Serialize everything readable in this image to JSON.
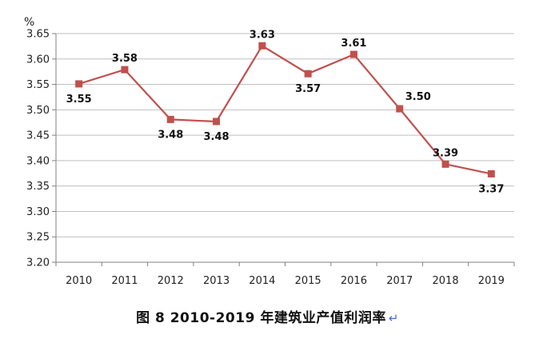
{
  "chart_data": {
    "type": "line",
    "unit": "%",
    "categories": [
      "2010",
      "2011",
      "2012",
      "2013",
      "2014",
      "2015",
      "2016",
      "2017",
      "2018",
      "2019"
    ],
    "values": [
      3.55,
      3.58,
      3.48,
      3.48,
      3.63,
      3.57,
      3.61,
      3.5,
      3.39,
      3.37
    ],
    "plotted_values": [
      3.551,
      3.579,
      3.481,
      3.477,
      3.626,
      3.571,
      3.609,
      3.502,
      3.393,
      3.374
    ],
    "data_labels": [
      "3.55",
      "3.58",
      "3.48",
      "3.48",
      "3.63",
      "3.57",
      "3.61",
      "3.50",
      "3.39",
      "3.37"
    ],
    "label_positions": [
      "below",
      "above",
      "below",
      "below",
      "above",
      "below",
      "above",
      "above-right",
      "above",
      "below"
    ],
    "yticks": [
      "3.20",
      "3.25",
      "3.30",
      "3.35",
      "3.40",
      "3.45",
      "3.50",
      "3.55",
      "3.60",
      "3.65"
    ],
    "ylim": [
      3.2,
      3.65
    ],
    "grid": true,
    "line_color": "#c0504d",
    "marker": "square",
    "legend": "none"
  },
  "caption": {
    "text": "图 8   2010-2019 年建筑业产值利润率",
    "return_mark": "↵"
  }
}
